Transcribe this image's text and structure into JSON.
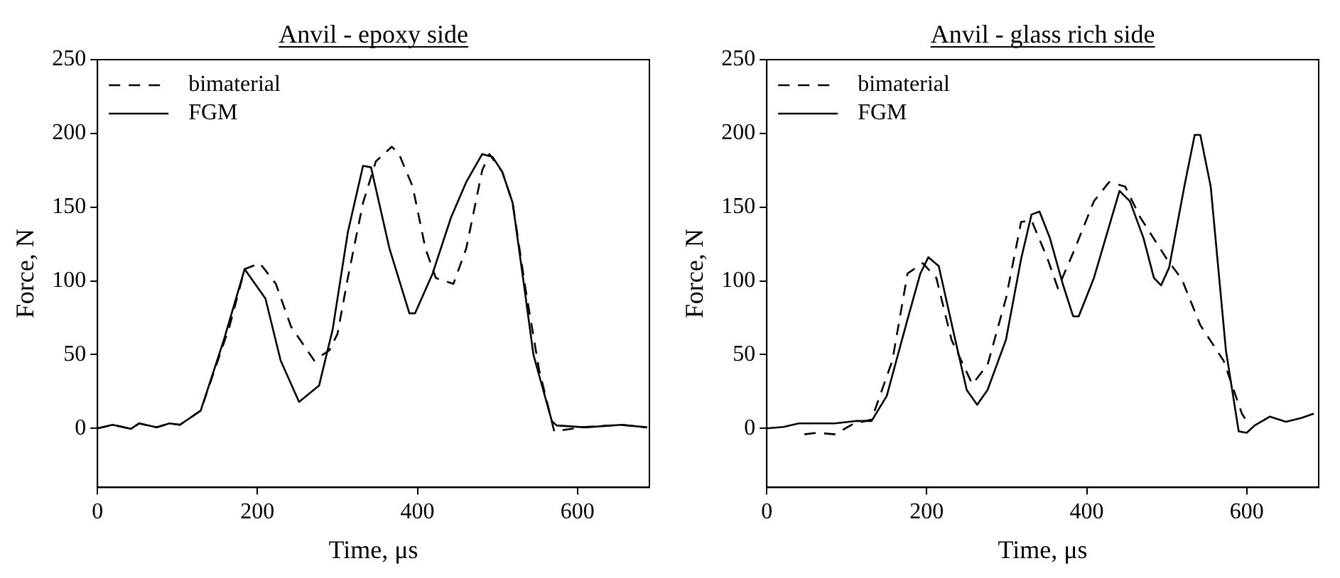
{
  "chart_data": [
    {
      "type": "line",
      "title": "Anvil - epoxy side",
      "xlabel": "Time, μs",
      "ylabel": "Force, N",
      "xlim": [
        0,
        690
      ],
      "xticks": [
        0,
        200,
        400,
        600
      ],
      "ylim": [
        -40,
        250
      ],
      "yticks": [
        0,
        50,
        100,
        150,
        200,
        250
      ],
      "grid": false,
      "legend": "top left",
      "marker": "none",
      "series": [
        {
          "name": "bimaterial",
          "color": "#000000",
          "line_style": "dashed",
          "x": [
            0,
            19,
            42,
            52,
            74,
            90,
            103,
            129,
            165,
            184,
            203,
            223,
            242,
            271,
            290,
            300,
            313,
            332,
            348,
            368,
            377,
            394,
            410,
            423,
            445,
            461,
            481,
            490,
            506,
            519,
            535,
            552,
            571,
            610,
            655,
            687
          ],
          "values": [
            0,
            2.4,
            -0.3,
            3.4,
            0.7,
            3.4,
            2.4,
            12,
            69,
            108,
            112,
            98,
            69,
            46,
            53,
            64,
            102,
            153,
            181,
            191,
            186,
            164,
            122,
            102,
            98,
            122,
            175,
            186,
            174,
            153,
            95,
            40,
            -2,
            1,
            2.4,
            0.7
          ]
        },
        {
          "name": "FGM",
          "color": "#000000",
          "line_style": "solid",
          "x": [
            0,
            19,
            42,
            52,
            74,
            90,
            103,
            129,
            158,
            184,
            210,
            229,
            252,
            277,
            294,
            313,
            332,
            342,
            365,
            390,
            397,
            419,
            442,
            461,
            481,
            494,
            506,
            519,
            532,
            545,
            568,
            574,
            610,
            655,
            687
          ],
          "values": [
            0,
            2.4,
            -0.3,
            3.4,
            0.7,
            3.4,
            2.4,
            12,
            60,
            108,
            88,
            46,
            18,
            29,
            67,
            133,
            178,
            177,
            122,
            78,
            78,
            105,
            143,
            167,
            186,
            184,
            174,
            153,
            102,
            50,
            5,
            2,
            0.7,
            2.4,
            0.7
          ]
        }
      ]
    },
    {
      "type": "line",
      "title": "Anvil - glass rich side",
      "xlabel": "Time, μs",
      "ylabel": "Force, N",
      "xlim": [
        0,
        690
      ],
      "xticks": [
        0,
        200,
        400,
        600
      ],
      "ylim": [
        -40,
        250
      ],
      "yticks": [
        0,
        50,
        100,
        150,
        200,
        250
      ],
      "grid": false,
      "legend": "top left",
      "marker": "none",
      "series": [
        {
          "name": "bimaterial",
          "color": "#000000",
          "line_style": "dashed",
          "x": [
            47,
            63,
            85,
            108,
            131,
            157,
            176,
            195,
            212,
            231,
            257,
            276,
            299,
            318,
            331,
            351,
            364,
            383,
            409,
            428,
            448,
            467,
            500,
            519,
            542,
            571,
            594,
            600
          ],
          "values": [
            -4,
            -3,
            -4,
            3,
            6,
            46,
            105,
            112,
            102,
            60,
            30,
            43,
            88,
            140,
            141,
            115,
            95,
            119,
            154,
            167,
            164,
            143,
            115,
            101,
            70,
            46,
            10,
            5
          ]
        },
        {
          "name": "FGM",
          "color": "#000000",
          "line_style": "solid",
          "x": [
            0,
            21,
            40,
            85,
            111,
            131,
            150,
            176,
            192,
            202,
            215,
            234,
            250,
            263,
            276,
            299,
            318,
            331,
            341,
            354,
            370,
            383,
            390,
            409,
            428,
            441,
            454,
            471,
            484,
            493,
            503,
            522,
            535,
            542,
            555,
            574,
            590,
            600,
            610,
            629,
            649,
            668,
            684
          ],
          "values": [
            0,
            1,
            3.4,
            3.4,
            5,
            5,
            22,
            74,
            105,
            116,
            110,
            64,
            26,
            16,
            26,
            60,
            115,
            145,
            147,
            129,
            98,
            76,
            76,
            102,
            137,
            161,
            154,
            129,
            102,
            97,
            109,
            164,
            199,
            199,
            164,
            53,
            -2,
            -3,
            2,
            8,
            4.5,
            7,
            10
          ]
        }
      ]
    }
  ]
}
